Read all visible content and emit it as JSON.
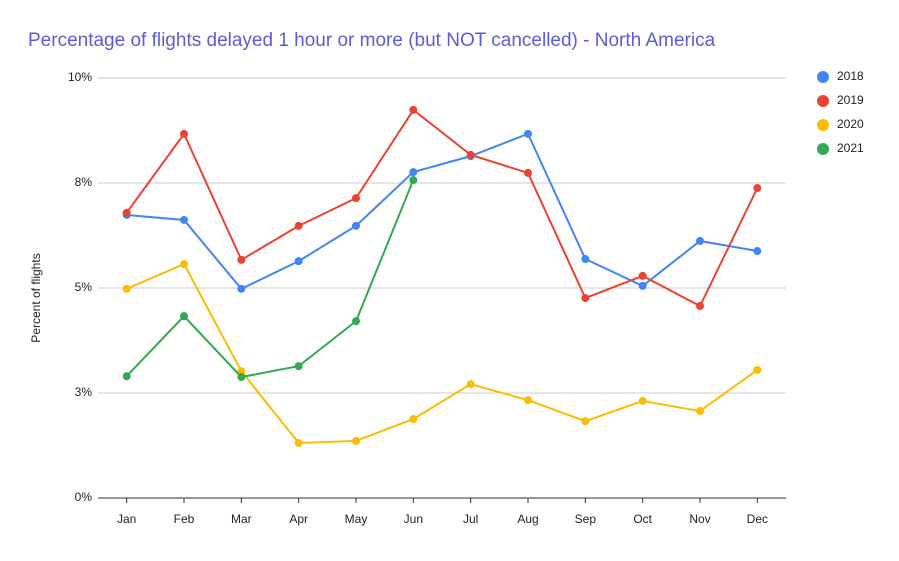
{
  "chart_data": {
    "type": "line",
    "title": "Percentage of flights delayed 1 hour or more (but NOT cancelled) - North America",
    "y_label": "Percent of flights",
    "categories": [
      "Jan",
      "Feb",
      "Mar",
      "Apr",
      "May",
      "Jun",
      "Jul",
      "Aug",
      "Sep",
      "Oct",
      "Nov",
      "Dec"
    ],
    "series": [
      {
        "name": "2018",
        "color": "#4285f4",
        "values": [
          6.74,
          6.62,
          4.98,
          5.64,
          6.48,
          7.76,
          8.14,
          8.67,
          5.69,
          5.05,
          6.12,
          5.88
        ]
      },
      {
        "name": "2019",
        "color": "#ea4335",
        "values": [
          6.79,
          8.67,
          5.67,
          6.48,
          7.14,
          9.24,
          8.17,
          7.74,
          4.76,
          5.29,
          4.57,
          7.38
        ]
      },
      {
        "name": "2020",
        "color": "#fbbc04",
        "values": [
          4.98,
          5.57,
          3.02,
          1.31,
          1.36,
          1.88,
          2.71,
          2.33,
          1.83,
          2.31,
          2.07,
          3.05
        ]
      },
      {
        "name": "2021",
        "color": "#34a853",
        "values": [
          2.9,
          4.33,
          2.88,
          3.14,
          4.21,
          7.57,
          null,
          null,
          null,
          null,
          null,
          null
        ]
      }
    ],
    "ylim": [
      0,
      10
    ],
    "yticks": [
      {
        "value": 0,
        "label": "0%"
      },
      {
        "value": 2.5,
        "label": "3%"
      },
      {
        "value": 5,
        "label": "5%"
      },
      {
        "value": 7.5,
        "label": "8%"
      },
      {
        "value": 10,
        "label": "10%"
      }
    ],
    "grid": true,
    "legend": "right"
  }
}
